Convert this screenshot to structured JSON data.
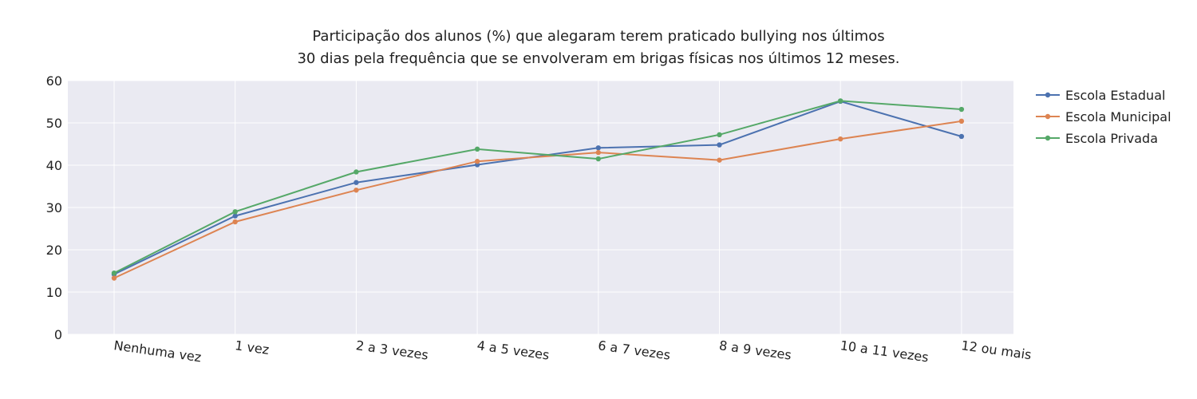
{
  "chart_data": {
    "type": "line",
    "title_lines": [
      "Participação dos alunos (%) que alegaram terem praticado bullying nos últimos",
      "30 dias pela frequência que se envolveram em brigas físicas nos últimos 12 meses."
    ],
    "xlabel": "",
    "ylabel": "",
    "categories": [
      "Nenhuma vez",
      "1 vez",
      "2 a 3 vezes",
      "4 a 5 vezes",
      "6 a 7 vezes",
      "8 a 9 vezes",
      "10 a 11 vezes",
      "12 ou mais"
    ],
    "ylim": [
      0,
      60
    ],
    "yticks": [
      0,
      10,
      20,
      30,
      40,
      50,
      60
    ],
    "grid": true,
    "legend_position": "top-right",
    "series": [
      {
        "name": "Escola Estadual",
        "color": "#4c72b0",
        "values": [
          14.2,
          28.0,
          35.9,
          40.1,
          44.1,
          44.8,
          55.1,
          46.8
        ]
      },
      {
        "name": "Escola Municipal",
        "color": "#dd8452",
        "values": [
          13.3,
          26.6,
          34.1,
          40.9,
          43.0,
          41.2,
          46.2,
          50.4
        ]
      },
      {
        "name": "Escola Privada",
        "color": "#55a868",
        "values": [
          14.5,
          29.0,
          38.4,
          43.8,
          41.5,
          47.2,
          55.2,
          53.2
        ]
      }
    ]
  }
}
